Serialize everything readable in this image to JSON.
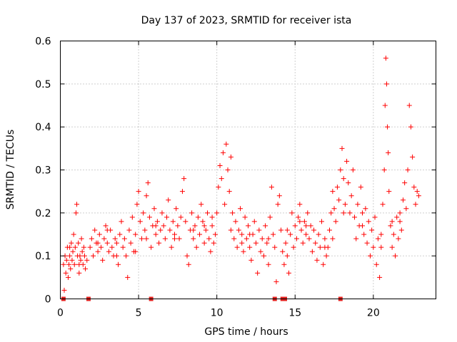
{
  "chart_data": {
    "type": "scatter",
    "title": "Day 137 of 2023, SRMTID for receiver ista",
    "xlabel": "GPS time / hours",
    "ylabel": "SRMTID / TECUs",
    "xlim": [
      0,
      24
    ],
    "ylim": [
      0,
      0.6
    ],
    "xticks": [
      0,
      5,
      10,
      15,
      20
    ],
    "xtick_labels": [
      "0",
      "5",
      "10",
      "15",
      "20"
    ],
    "yticks": [
      0,
      0.1,
      0.2,
      0.3,
      0.4,
      0.5,
      0.6
    ],
    "ytick_labels": [
      "0",
      "0.1",
      "0.2",
      "0.3",
      "0.4",
      "0.5",
      "0.6"
    ],
    "grid": true,
    "marker": "plus",
    "marker_color": "#ff0000",
    "zero_markers": {
      "marker": "square",
      "color": "#e0201e",
      "x": [
        0.2,
        1.8,
        5.8,
        13.7,
        14.2,
        14.35,
        17.9
      ],
      "y": [
        0,
        0,
        0,
        0,
        0,
        0,
        0
      ]
    },
    "series": [
      {
        "name": "SRMTID",
        "points": [
          [
            0.2,
            0.08
          ],
          [
            0.25,
            0.02
          ],
          [
            0.3,
            0.1
          ],
          [
            0.35,
            0.06
          ],
          [
            0.4,
            0.09
          ],
          [
            0.45,
            0.12
          ],
          [
            0.5,
            0.05
          ],
          [
            0.55,
            0.08
          ],
          [
            0.6,
            0.1
          ],
          [
            0.65,
            0.07
          ],
          [
            0.7,
            0.13
          ],
          [
            0.75,
            0.09
          ],
          [
            0.8,
            0.11
          ],
          [
            0.85,
            0.15
          ],
          [
            0.9,
            0.08
          ],
          [
            0.95,
            0.12
          ],
          [
            1.0,
            0.2
          ],
          [
            1.05,
            0.22
          ],
          [
            1.1,
            0.1
          ],
          [
            1.15,
            0.13
          ],
          [
            1.2,
            0.06
          ],
          [
            1.25,
            0.1
          ],
          [
            1.3,
            0.09
          ],
          [
            1.35,
            0.14
          ],
          [
            1.4,
            0.11
          ],
          [
            1.45,
            0.08
          ],
          [
            1.5,
            0.12
          ],
          [
            1.55,
            0.1
          ],
          [
            1.6,
            0.07
          ],
          [
            1.7,
            0.09
          ],
          [
            1.9,
            0.12
          ],
          [
            2.0,
            0.14
          ],
          [
            2.1,
            0.1
          ],
          [
            2.2,
            0.16
          ],
          [
            2.3,
            0.13
          ],
          [
            2.4,
            0.11
          ],
          [
            2.5,
            0.15
          ],
          [
            2.6,
            0.12
          ],
          [
            2.7,
            0.09
          ],
          [
            2.8,
            0.14
          ],
          [
            2.9,
            0.17
          ],
          [
            3.0,
            0.13
          ],
          [
            3.1,
            0.11
          ],
          [
            3.2,
            0.16
          ],
          [
            3.3,
            0.12
          ],
          [
            3.4,
            0.1
          ],
          [
            3.5,
            0.14
          ],
          [
            3.6,
            0.13
          ],
          [
            3.7,
            0.08
          ],
          [
            3.8,
            0.15
          ],
          [
            3.9,
            0.18
          ],
          [
            4.0,
            0.12
          ],
          [
            4.1,
            0.14
          ],
          [
            4.2,
            0.1
          ],
          [
            4.3,
            0.05
          ],
          [
            4.4,
            0.16
          ],
          [
            4.5,
            0.13
          ],
          [
            4.6,
            0.19
          ],
          [
            4.7,
            0.11
          ],
          [
            4.8,
            0.15
          ],
          [
            4.9,
            0.22
          ],
          [
            5.0,
            0.25
          ],
          [
            5.1,
            0.18
          ],
          [
            5.2,
            0.14
          ],
          [
            5.3,
            0.2
          ],
          [
            5.4,
            0.16
          ],
          [
            5.5,
            0.24
          ],
          [
            5.6,
            0.27
          ],
          [
            5.7,
            0.19
          ],
          [
            5.8,
            0.12
          ],
          [
            5.9,
            0.17
          ],
          [
            6.0,
            0.21
          ],
          [
            6.1,
            0.15
          ],
          [
            6.2,
            0.18
          ],
          [
            6.3,
            0.13
          ],
          [
            6.4,
            0.16
          ],
          [
            6.5,
            0.2
          ],
          [
            6.6,
            0.17
          ],
          [
            6.7,
            0.14
          ],
          [
            6.8,
            0.19
          ],
          [
            6.9,
            0.23
          ],
          [
            7.0,
            0.16
          ],
          [
            7.1,
            0.12
          ],
          [
            7.2,
            0.18
          ],
          [
            7.3,
            0.15
          ],
          [
            7.4,
            0.21
          ],
          [
            7.5,
            0.17
          ],
          [
            7.6,
            0.14
          ],
          [
            7.7,
            0.19
          ],
          [
            7.8,
            0.25
          ],
          [
            7.9,
            0.28
          ],
          [
            8.0,
            0.18
          ],
          [
            8.1,
            0.1
          ],
          [
            8.2,
            0.08
          ],
          [
            8.3,
            0.16
          ],
          [
            8.4,
            0.2
          ],
          [
            8.5,
            0.14
          ],
          [
            8.6,
            0.17
          ],
          [
            8.7,
            0.12
          ],
          [
            8.8,
            0.19
          ],
          [
            8.9,
            0.15
          ],
          [
            9.0,
            0.22
          ],
          [
            9.1,
            0.18
          ],
          [
            9.2,
            0.13
          ],
          [
            9.3,
            0.16
          ],
          [
            9.4,
            0.2
          ],
          [
            9.5,
            0.14
          ],
          [
            9.6,
            0.11
          ],
          [
            9.7,
            0.17
          ],
          [
            9.8,
            0.13
          ],
          [
            9.9,
            0.15
          ],
          [
            10.0,
            0.2
          ],
          [
            10.1,
            0.26
          ],
          [
            10.2,
            0.31
          ],
          [
            10.3,
            0.28
          ],
          [
            10.4,
            0.34
          ],
          [
            10.5,
            0.22
          ],
          [
            10.6,
            0.36
          ],
          [
            10.7,
            0.3
          ],
          [
            10.8,
            0.25
          ],
          [
            10.9,
            0.33
          ],
          [
            11.0,
            0.2
          ],
          [
            11.1,
            0.14
          ],
          [
            11.2,
            0.18
          ],
          [
            11.3,
            0.12
          ],
          [
            11.4,
            0.16
          ],
          [
            11.5,
            0.21
          ],
          [
            11.6,
            0.15
          ],
          [
            11.7,
            0.11
          ],
          [
            11.8,
            0.19
          ],
          [
            11.9,
            0.14
          ],
          [
            12.0,
            0.17
          ],
          [
            12.1,
            0.12
          ],
          [
            12.2,
            0.09
          ],
          [
            12.3,
            0.15
          ],
          [
            12.4,
            0.18
          ],
          [
            12.5,
            0.13
          ],
          [
            12.6,
            0.06
          ],
          [
            12.7,
            0.16
          ],
          [
            12.8,
            0.11
          ],
          [
            12.9,
            0.14
          ],
          [
            13.0,
            0.1
          ],
          [
            13.1,
            0.17
          ],
          [
            13.2,
            0.13
          ],
          [
            13.3,
            0.08
          ],
          [
            13.4,
            0.19
          ],
          [
            13.5,
            0.26
          ],
          [
            13.6,
            0.15
          ],
          [
            13.7,
            0.12
          ],
          [
            13.8,
            0.04
          ],
          [
            13.9,
            0.22
          ],
          [
            14.0,
            0.24
          ],
          [
            14.1,
            0.16
          ],
          [
            14.2,
            0.11
          ],
          [
            14.3,
            0.08
          ],
          [
            14.4,
            0.13
          ],
          [
            14.5,
            0.1
          ],
          [
            14.6,
            0.06
          ],
          [
            14.7,
            0.15
          ],
          [
            14.8,
            0.2
          ],
          [
            14.9,
            0.12
          ],
          [
            15.0,
            0.17
          ],
          [
            15.1,
            0.14
          ],
          [
            15.2,
            0.19
          ],
          [
            15.3,
            0.22
          ],
          [
            15.4,
            0.16
          ],
          [
            15.5,
            0.13
          ],
          [
            15.6,
            0.18
          ],
          [
            15.7,
            0.15
          ],
          [
            15.8,
            0.2
          ],
          [
            15.9,
            0.14
          ],
          [
            16.0,
            0.17
          ],
          [
            16.1,
            0.11
          ],
          [
            16.2,
            0.16
          ],
          [
            16.3,
            0.13
          ],
          [
            16.4,
            0.09
          ],
          [
            16.5,
            0.15
          ],
          [
            16.6,
            0.12
          ],
          [
            16.7,
            0.18
          ],
          [
            16.8,
            0.08
          ],
          [
            16.9,
            0.14
          ],
          [
            17.0,
            0.1
          ],
          [
            17.1,
            0.12
          ],
          [
            17.2,
            0.16
          ],
          [
            17.3,
            0.2
          ],
          [
            17.4,
            0.25
          ],
          [
            17.5,
            0.21
          ],
          [
            17.6,
            0.18
          ],
          [
            17.7,
            0.26
          ],
          [
            17.8,
            0.23
          ],
          [
            17.9,
            0.3
          ],
          [
            18.0,
            0.35
          ],
          [
            18.1,
            0.28
          ],
          [
            18.2,
            0.22
          ],
          [
            18.3,
            0.32
          ],
          [
            18.4,
            0.27
          ],
          [
            18.5,
            0.2
          ],
          [
            18.6,
            0.24
          ],
          [
            18.7,
            0.3
          ],
          [
            18.8,
            0.19
          ],
          [
            18.9,
            0.14
          ],
          [
            19.0,
            0.22
          ],
          [
            19.1,
            0.17
          ],
          [
            19.2,
            0.26
          ],
          [
            19.3,
            0.2
          ],
          [
            19.4,
            0.15
          ],
          [
            19.5,
            0.21
          ],
          [
            19.6,
            0.13
          ],
          [
            19.7,
            0.18
          ],
          [
            19.8,
            0.1
          ],
          [
            19.9,
            0.16
          ],
          [
            20.0,
            0.12
          ],
          [
            20.1,
            0.19
          ],
          [
            20.2,
            0.08
          ],
          [
            20.3,
            0.14
          ],
          [
            20.4,
            0.05
          ],
          [
            20.5,
            0.12
          ],
          [
            20.6,
            0.22
          ],
          [
            20.7,
            0.3
          ],
          [
            20.75,
            0.45
          ],
          [
            20.8,
            0.56
          ],
          [
            20.85,
            0.5
          ],
          [
            20.9,
            0.4
          ],
          [
            20.95,
            0.34
          ],
          [
            21.0,
            0.25
          ],
          [
            21.1,
            0.17
          ],
          [
            21.2,
            0.12
          ],
          [
            21.3,
            0.15
          ],
          [
            21.4,
            0.1
          ],
          [
            21.5,
            0.19
          ],
          [
            21.6,
            0.14
          ],
          [
            21.7,
            0.2
          ],
          [
            21.8,
            0.16
          ],
          [
            21.9,
            0.23
          ],
          [
            22.0,
            0.27
          ],
          [
            22.1,
            0.21
          ],
          [
            22.2,
            0.3
          ],
          [
            22.3,
            0.45
          ],
          [
            22.4,
            0.4
          ],
          [
            22.5,
            0.33
          ],
          [
            22.6,
            0.26
          ],
          [
            22.7,
            0.22
          ],
          [
            22.8,
            0.25
          ],
          [
            0.6,
            0.12
          ],
          [
            1.2,
            0.08
          ],
          [
            2.4,
            0.13
          ],
          [
            3.6,
            0.1
          ],
          [
            4.8,
            0.11
          ],
          [
            6.1,
            0.17
          ],
          [
            7.3,
            0.14
          ],
          [
            8.5,
            0.16
          ],
          [
            9.7,
            0.19
          ],
          [
            10.9,
            0.16
          ],
          [
            12.1,
            0.15
          ],
          [
            13.3,
            0.14
          ],
          [
            14.5,
            0.16
          ],
          [
            15.7,
            0.17
          ],
          [
            16.9,
            0.12
          ],
          [
            18.1,
            0.2
          ],
          [
            19.3,
            0.17
          ],
          [
            20.5,
            0.15
          ],
          [
            21.7,
            0.18
          ],
          [
            22.9,
            0.24
          ],
          [
            3.0,
            0.16
          ],
          [
            5.5,
            0.14
          ],
          [
            9.2,
            0.17
          ],
          [
            11.6,
            0.13
          ],
          [
            15.3,
            0.18
          ],
          [
            17.4,
            0.14
          ],
          [
            21.2,
            0.18
          ]
        ]
      }
    ]
  }
}
